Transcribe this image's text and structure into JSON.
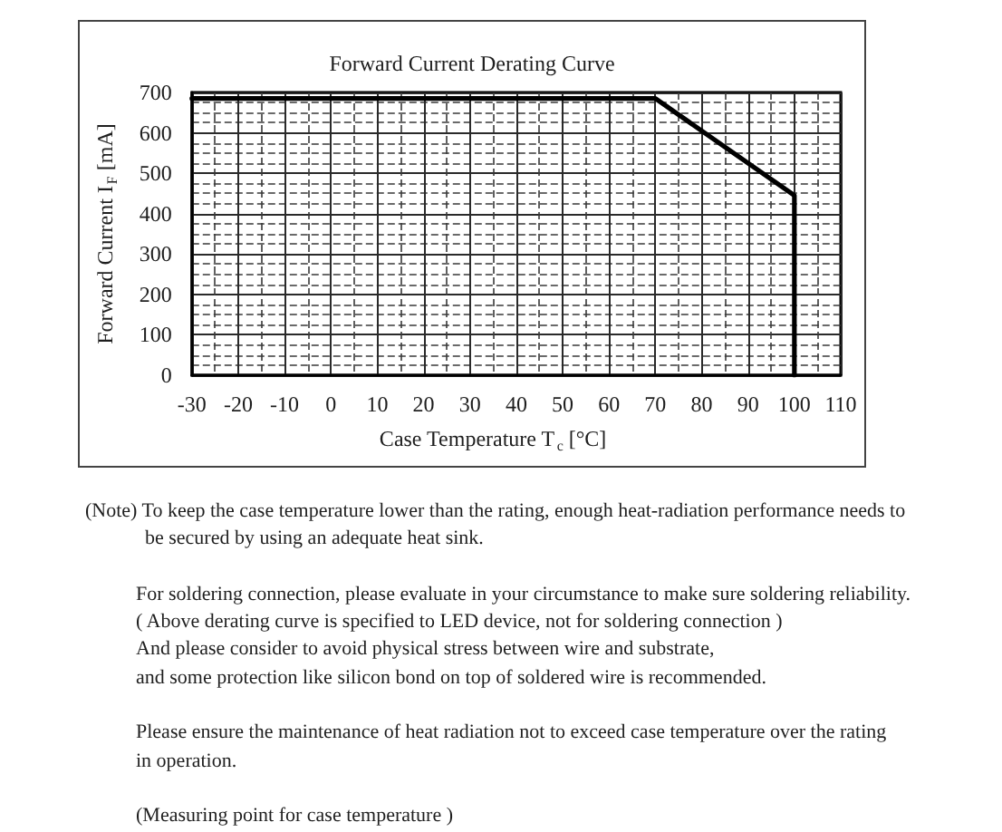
{
  "chart_data": {
    "type": "line",
    "title": "Forward Current Derating Curve",
    "xlabel": "Case Temperature T$_{c}$ [°C]",
    "ylabel": "Forward Current I$_{F}$ [mA]",
    "x": [
      -30,
      70,
      100,
      100
    ],
    "values": [
      685,
      685,
      445,
      0
    ],
    "color": "#000000",
    "marker": "none",
    "line_style": "solid",
    "xlim": [
      -30,
      110
    ],
    "ylim": [
      0,
      700
    ],
    "xticks": [
      -30,
      -20,
      -10,
      0,
      10,
      20,
      30,
      40,
      50,
      60,
      70,
      80,
      90,
      100,
      110
    ],
    "yticks": [
      0,
      100,
      200,
      300,
      400,
      500,
      600,
      700
    ],
    "grid": true,
    "annotations": [
      "(Note) To keep the case temperature lower than the rating, enough heat-radiation performance needs to\nbe secured by using an adequate heat sink.",
      "For soldering connection, please evaluate in your circumstance to make sure soldering reliability.\n( Above derating curve is specified to LED device, not for soldering connection )\nAnd please consider to avoid physical stress between wire and substrate,\nand some protection like silicon bond on top of soldered wire is recommended.",
      "Please ensure the maintenance of heat radiation not to exceed case temperature over the rating\nin operation.",
      "(Measuring point for case temperature )"
    ]
  }
}
